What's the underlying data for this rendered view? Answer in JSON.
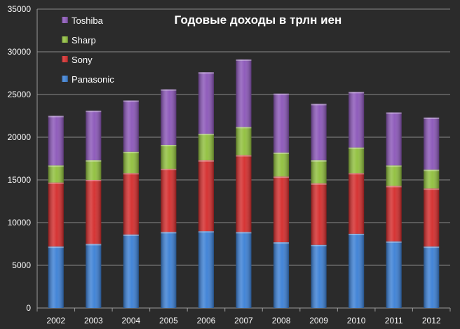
{
  "chart_data": {
    "type": "bar",
    "stacked": true,
    "title": "Годовые доходы в трлн иен",
    "xlabel": "",
    "ylabel": "",
    "ylim": [
      0,
      35000
    ],
    "yticks": [
      "0",
      "5000",
      "10000",
      "15000",
      "20000",
      "25000",
      "30000",
      "35000"
    ],
    "categories": [
      "2002",
      "2003",
      "2004",
      "2005",
      "2006",
      "2007",
      "2008",
      "2009",
      "2010",
      "2011",
      "2012"
    ],
    "grid": true,
    "legend_position": "top-left",
    "series": [
      {
        "name": "Panasonic",
        "color": "#3a7fd5",
        "values": [
          7200,
          7500,
          8600,
          8900,
          9000,
          8900,
          7700,
          7400,
          8700,
          7800,
          7200
        ]
      },
      {
        "name": "Sony",
        "color": "#d42a2a",
        "values": [
          7500,
          7500,
          7200,
          7400,
          8300,
          9000,
          7700,
          7200,
          7100,
          6500,
          6800
        ]
      },
      {
        "name": "Sharp",
        "color": "#8fbf3b",
        "values": [
          2000,
          2300,
          2500,
          2800,
          3100,
          3300,
          2800,
          2700,
          3000,
          2400,
          2200
        ]
      },
      {
        "name": "Toshiba",
        "color": "#8a55b8",
        "values": [
          5800,
          5800,
          6000,
          6500,
          7200,
          7900,
          6900,
          6600,
          6500,
          6200,
          6100
        ]
      }
    ]
  }
}
